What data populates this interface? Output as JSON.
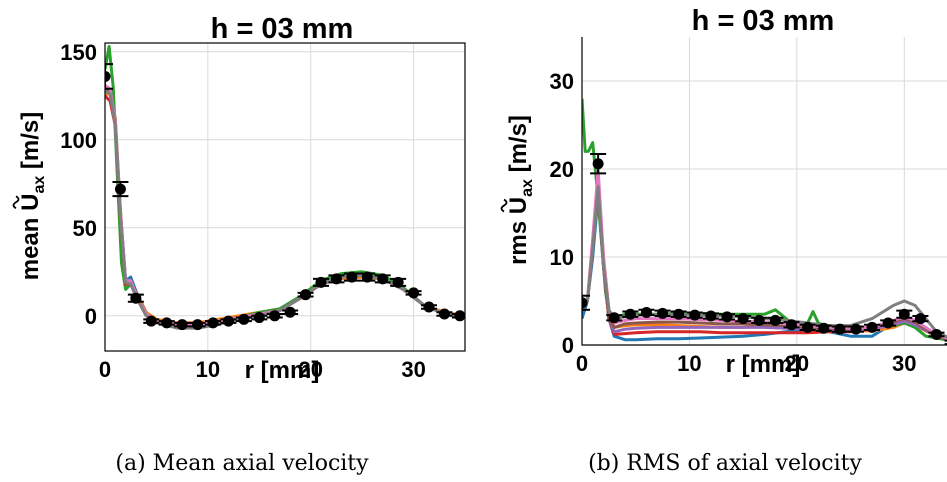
{
  "chart_data": [
    {
      "type": "line",
      "panel": "a",
      "title": "h = 03 mm",
      "xlabel": "r [mm]",
      "ylabel": "mean Ũax [m/s]",
      "ylabel_parts": {
        "prefix": "mean ",
        "symbol": "U",
        "sub": "ax",
        "unit": " [m/s]"
      },
      "caption": "(a) Mean axial velocity",
      "xlim": [
        0,
        35
      ],
      "ylim": [
        -20,
        155
      ],
      "xticks": [
        0,
        10,
        20,
        30
      ],
      "yticks": [
        0,
        50,
        100,
        150
      ],
      "grid": true,
      "series": [
        {
          "color": "#1f77b4",
          "x": [
            0,
            0.5,
            1,
            1.5,
            2,
            2.5,
            3,
            4,
            5,
            7,
            9,
            11,
            13,
            15,
            17,
            19,
            21,
            23,
            25,
            27,
            29,
            31,
            33,
            35
          ],
          "y": [
            128,
            128,
            112,
            60,
            20,
            22,
            14,
            2,
            -3,
            -6,
            -6,
            -4,
            -2,
            1,
            4,
            11,
            19,
            23,
            24,
            22,
            15,
            6,
            1,
            0
          ]
        },
        {
          "color": "#ff7f0e",
          "x": [
            0,
            0.5,
            1,
            1.5,
            2,
            2.5,
            3,
            4,
            5,
            7,
            9,
            11,
            13,
            15,
            17,
            19,
            21,
            23,
            25,
            27,
            29,
            31,
            33,
            35
          ],
          "y": [
            126,
            126,
            112,
            60,
            18,
            19,
            13,
            2,
            -2,
            -4,
            -4,
            -2,
            0,
            2,
            4,
            10,
            18,
            21,
            22,
            21,
            15,
            6,
            2,
            0
          ]
        },
        {
          "color": "#2ca02c",
          "x": [
            0,
            0.4,
            0.8,
            1.2,
            1.6,
            2,
            2.5,
            3,
            4,
            5,
            7,
            9,
            11,
            13,
            15,
            17,
            19,
            21,
            23,
            25,
            27,
            29,
            31,
            33,
            35
          ],
          "y": [
            140,
            153,
            130,
            80,
            30,
            15,
            18,
            12,
            1,
            -3,
            -5,
            -5,
            -3,
            -1,
            2,
            4,
            11,
            20,
            24,
            25,
            23,
            16,
            6,
            1,
            0
          ]
        },
        {
          "color": "#d62728",
          "x": [
            0,
            0.5,
            1,
            1.5,
            2,
            2.5,
            3,
            4,
            5,
            7,
            9,
            11,
            13,
            15,
            17,
            19,
            21,
            23,
            25,
            27,
            29,
            31,
            33,
            35
          ],
          "y": [
            125,
            122,
            108,
            55,
            18,
            18,
            12,
            1,
            -3,
            -5,
            -5,
            -3,
            -1,
            1,
            3,
            10,
            18,
            22,
            23,
            21,
            15,
            6,
            1,
            0
          ]
        },
        {
          "color": "#9467bd",
          "x": [
            0,
            0.5,
            1,
            1.5,
            2,
            2.5,
            3,
            4,
            5,
            7,
            9,
            11,
            13,
            15,
            17,
            19,
            21,
            23,
            25,
            27,
            29,
            31,
            33,
            35
          ],
          "y": [
            130,
            128,
            110,
            58,
            20,
            20,
            12,
            1,
            -3,
            -5,
            -5,
            -3,
            -1,
            1,
            3,
            10,
            18,
            22,
            23,
            21,
            15,
            6,
            1,
            0
          ]
        },
        {
          "color": "#8c564b",
          "x": [
            0,
            0.5,
            1,
            1.5,
            2,
            2.5,
            3,
            4,
            5,
            7,
            9,
            11,
            13,
            15,
            17,
            19,
            21,
            23,
            25,
            27,
            29,
            31,
            33,
            35
          ],
          "y": [
            129,
            127,
            109,
            57,
            19,
            19,
            12,
            1,
            -3,
            -5,
            -5,
            -3,
            -1,
            1,
            3,
            10,
            18,
            22,
            23,
            21,
            15,
            6,
            1,
            0
          ]
        },
        {
          "color": "#e377c2",
          "x": [
            0,
            0.5,
            1,
            1.5,
            2,
            2.5,
            3,
            4,
            5,
            7,
            9,
            11,
            13,
            15,
            17,
            19,
            21,
            23,
            25,
            27,
            29,
            31,
            33,
            35
          ],
          "y": [
            131,
            129,
            110,
            58,
            20,
            20,
            12,
            1,
            -3,
            -5,
            -5,
            -3,
            -1,
            1,
            3,
            10,
            18,
            22,
            23,
            21,
            15,
            6,
            1,
            0
          ]
        },
        {
          "color": "#7f7f7f",
          "x": [
            0,
            0.5,
            1,
            1.5,
            2,
            2.5,
            3,
            4,
            5,
            7,
            9,
            11,
            13,
            15,
            17,
            19,
            21,
            23,
            25,
            27,
            29,
            31,
            33,
            35
          ],
          "y": [
            128,
            126,
            108,
            56,
            19,
            18,
            11,
            0,
            -4,
            -7,
            -7,
            -5,
            -2,
            0,
            3,
            10,
            18,
            22,
            23,
            21,
            15,
            6,
            1,
            0
          ]
        }
      ],
      "markers": {
        "color": "#000000",
        "x": [
          0,
          1.5,
          3,
          4.5,
          6,
          7.5,
          9,
          10.5,
          12,
          13.5,
          15,
          16.5,
          18,
          19.5,
          21,
          22.5,
          24,
          25.5,
          27,
          28.5,
          30,
          31.5,
          33,
          34.5
        ],
        "y": [
          136,
          72,
          10,
          -3,
          -4,
          -5,
          -5,
          -4,
          -3,
          -2,
          -1,
          0,
          2,
          12,
          19,
          21,
          22,
          22,
          21,
          19,
          13,
          5,
          1,
          0
        ],
        "err": [
          7,
          4,
          2,
          1,
          1,
          1,
          1,
          1,
          1,
          1,
          1,
          1,
          1,
          1,
          2,
          2,
          2,
          2,
          2,
          2,
          1,
          1,
          1,
          1
        ]
      }
    },
    {
      "type": "line",
      "panel": "b",
      "title": "h = 03 mm",
      "xlabel": "r [mm]",
      "ylabel": "rms Ũax [m/s]",
      "ylabel_parts": {
        "prefix": "rms ",
        "symbol": "U",
        "sub": "ax",
        "unit": " [m/s]"
      },
      "caption": "(b) RMS of axial velocity",
      "xlim": [
        0,
        35
      ],
      "ylim": [
        0,
        35
      ],
      "xticks": [
        0,
        10,
        20,
        30
      ],
      "yticks": [
        0,
        10,
        20,
        30
      ],
      "grid": true,
      "series": [
        {
          "color": "#1f77b4",
          "x": [
            0,
            0.5,
            1,
            1.5,
            2,
            2.5,
            3,
            4,
            5,
            7,
            9,
            11,
            13,
            15,
            17,
            19,
            21,
            23,
            25,
            27,
            29,
            30,
            31,
            33,
            35
          ],
          "y": [
            3,
            5,
            10,
            17,
            9,
            3,
            1,
            0.6,
            0.6,
            0.7,
            0.7,
            0.8,
            0.9,
            1,
            1.2,
            1.5,
            1.8,
            1.5,
            1,
            1,
            2.5,
            3,
            2.5,
            1,
            0.3
          ]
        },
        {
          "color": "#ff7f0e",
          "x": [
            0,
            0.5,
            1,
            1.5,
            2,
            2.5,
            3,
            4,
            5,
            7,
            9,
            11,
            13,
            15,
            17,
            19,
            21,
            23,
            25,
            27,
            29,
            30,
            31,
            33,
            35
          ],
          "y": [
            4,
            5,
            12,
            19,
            10,
            4,
            2,
            2.2,
            2.3,
            2.3,
            2.2,
            2.1,
            2,
            2,
            2.2,
            2,
            1.8,
            1.7,
            1.6,
            1.6,
            2,
            2.5,
            2.2,
            1,
            0.3
          ]
        },
        {
          "color": "#2ca02c",
          "x": [
            0,
            0.3,
            0.6,
            1,
            1.4,
            1.8,
            2.2,
            2.6,
            3,
            4,
            5,
            7,
            9,
            11,
            13,
            15,
            17,
            18,
            19,
            20,
            21,
            21.5,
            22,
            23,
            25,
            27,
            29,
            30,
            31,
            32,
            33,
            35
          ],
          "y": [
            28,
            22,
            22,
            23,
            18,
            12,
            6,
            3,
            3,
            3.5,
            3.5,
            3.5,
            3.6,
            3.6,
            3.5,
            3.5,
            3.5,
            4,
            3,
            2,
            2.5,
            3.8,
            2.5,
            2,
            1.8,
            2,
            2.2,
            2.5,
            2,
            1,
            0.8,
            0.3
          ]
        },
        {
          "color": "#d62728",
          "x": [
            0,
            0.5,
            1,
            1.5,
            2,
            2.5,
            3,
            4,
            5,
            7,
            9,
            11,
            13,
            15,
            17,
            19,
            21,
            23,
            25,
            27,
            29,
            30,
            31,
            33,
            35
          ],
          "y": [
            5,
            5,
            11,
            18,
            9,
            3,
            1.2,
            1.3,
            1.4,
            1.5,
            1.5,
            1.5,
            1.4,
            1.4,
            1.4,
            1.4,
            1.4,
            1.5,
            1.5,
            1.8,
            2.5,
            3,
            2.5,
            1,
            0.3
          ]
        },
        {
          "color": "#9467bd",
          "x": [
            0,
            0.5,
            1,
            1.5,
            2,
            2.5,
            3,
            4,
            5,
            7,
            9,
            11,
            13,
            15,
            17,
            19,
            21,
            23,
            25,
            27,
            29,
            30,
            31,
            33,
            35
          ],
          "y": [
            4,
            5,
            11,
            18,
            9,
            3,
            1.5,
            1.8,
            1.9,
            2,
            2,
            2,
            2,
            2,
            2,
            1.9,
            1.8,
            1.7,
            1.6,
            1.8,
            2.3,
            2.7,
            2.3,
            1,
            0.3
          ]
        },
        {
          "color": "#8c564b",
          "x": [
            0,
            0.5,
            1,
            1.5,
            2,
            2.5,
            3,
            4,
            5,
            7,
            9,
            11,
            13,
            15,
            17,
            19,
            21,
            23,
            25,
            27,
            29,
            30,
            31,
            33,
            35
          ],
          "y": [
            4.5,
            5,
            11,
            18,
            9,
            3,
            2,
            2.4,
            2.5,
            2.6,
            2.6,
            2.5,
            2.4,
            2.4,
            2.3,
            2.2,
            2,
            1.9,
            1.8,
            2,
            2.6,
            3,
            2.6,
            1,
            0.3
          ]
        },
        {
          "color": "#e377c2",
          "x": [
            0,
            0.5,
            1,
            1.5,
            2,
            2.5,
            3,
            4,
            5,
            7,
            9,
            11,
            13,
            15,
            17,
            19,
            21,
            23,
            25,
            27,
            29,
            30,
            31,
            33,
            35
          ],
          "y": [
            4,
            5,
            12,
            20,
            10,
            4,
            2.5,
            2.8,
            3,
            3,
            3,
            2.9,
            2.8,
            2.7,
            2.6,
            2.4,
            2.2,
            2,
            1.9,
            2,
            2.8,
            3.2,
            2.8,
            1.2,
            0.3
          ]
        },
        {
          "color": "#7f7f7f",
          "x": [
            0,
            0.5,
            1,
            1.5,
            2,
            2.5,
            3,
            4,
            5,
            7,
            9,
            11,
            13,
            15,
            17,
            19,
            21,
            23,
            25,
            27,
            29,
            30,
            31,
            32,
            33,
            35
          ],
          "y": [
            4,
            5,
            11,
            18,
            9,
            4,
            3,
            3.2,
            3.4,
            3.5,
            3.5,
            3.4,
            3.3,
            3.2,
            3,
            2.8,
            2.5,
            2.2,
            2.2,
            3,
            4.5,
            5,
            4.5,
            3,
            1.5,
            0.3
          ]
        }
      ],
      "markers": {
        "color": "#000000",
        "x": [
          0,
          1.5,
          3,
          4.5,
          6,
          7.5,
          9,
          10.5,
          12,
          13.5,
          15,
          16.5,
          18,
          19.5,
          21,
          22.5,
          24,
          25.5,
          27,
          28.5,
          30,
          31.5,
          33,
          34.5
        ],
        "y": [
          4.8,
          20.6,
          3.1,
          3.5,
          3.7,
          3.6,
          3.5,
          3.4,
          3.3,
          3.2,
          3.0,
          2.8,
          2.8,
          2.3,
          2.0,
          1.9,
          1.8,
          1.8,
          2.0,
          2.5,
          3.5,
          3.0,
          1.2,
          0.3
        ],
        "err": [
          0.8,
          1.1,
          0.3,
          0.3,
          0.3,
          0.3,
          0.3,
          0.3,
          0.3,
          0.3,
          0.3,
          0.3,
          0.3,
          0.3,
          0.3,
          0.3,
          0.3,
          0.3,
          0.3,
          0.3,
          0.4,
          0.3,
          0.2,
          0.2
        ]
      }
    }
  ]
}
